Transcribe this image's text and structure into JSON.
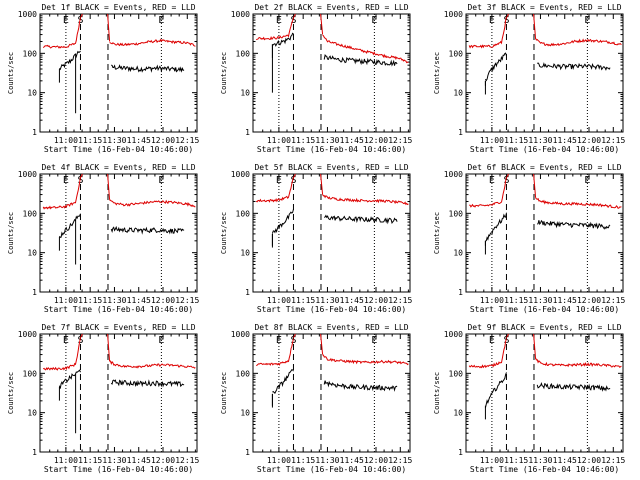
{
  "colors": {
    "events": "#000000",
    "lld": "#dd0000",
    "axes": "#000000",
    "background": "#ffffff"
  },
  "shared": {
    "ylabel": "Counts/sec",
    "xlabel": "Start Time (16-Feb-04 10:46:00)",
    "x_range_minutes": [
      -2,
      95
    ],
    "y_range": [
      1,
      1000
    ],
    "y_scale": "log",
    "y_tick_labels": [
      "1",
      "10",
      "100",
      "1000"
    ],
    "x_tick_labels": [
      "11:00",
      "11:15",
      "11:30",
      "11:45",
      "12:00",
      "12:15"
    ],
    "x_tick_minutes": [
      14,
      29,
      44,
      59,
      74,
      89
    ],
    "marker_labels": [
      "E",
      "S",
      "E"
    ]
  },
  "chart_data": [
    {
      "type": "line",
      "title": "Det 1f BLACK = Events, RED = LLD",
      "markers_min": [
        14,
        23,
        40,
        73
      ],
      "series": [
        {
          "name": "Events",
          "pre": [
            [
              10,
              40
            ],
            [
              13,
              50
            ],
            [
              16,
              60
            ],
            [
              19,
              80
            ],
            [
              22,
              110
            ],
            [
              23,
              120
            ]
          ],
          "post": [
            [
              42,
              45
            ],
            [
              50,
              42
            ],
            [
              60,
              40
            ],
            [
              70,
              42
            ],
            [
              75,
              41
            ],
            [
              87,
              38
            ]
          ],
          "spike": [
            20,
            3
          ]
        },
        {
          "name": "LLD",
          "pre": [
            [
              0,
              150
            ],
            [
              8,
              145
            ],
            [
              14,
              145
            ],
            [
              20,
              180
            ],
            [
              23,
              800
            ]
          ],
          "post": [
            [
              41,
              200
            ],
            [
              44,
              170
            ],
            [
              50,
              165
            ],
            [
              58,
              175
            ],
            [
              65,
              195
            ],
            [
              72,
              210
            ],
            [
              80,
              195
            ],
            [
              88,
              185
            ],
            [
              94,
              160
            ]
          ]
        }
      ]
    },
    {
      "type": "line",
      "title": "Det 2f BLACK = Events, RED = LLD",
      "markers_min": [
        14,
        23,
        40,
        73
      ],
      "series": [
        {
          "name": "Events",
          "pre": [
            [
              10,
              170
            ],
            [
              14,
              185
            ],
            [
              18,
              210
            ],
            [
              21,
              250
            ],
            [
              23,
              320
            ]
          ],
          "post": [
            [
              42,
              80
            ],
            [
              50,
              70
            ],
            [
              60,
              65
            ],
            [
              70,
              62
            ],
            [
              80,
              58
            ],
            [
              87,
              55
            ]
          ],
          "spike": [
            10,
            10
          ]
        },
        {
          "name": "LLD",
          "pre": [
            [
              0,
              240
            ],
            [
              8,
              240
            ],
            [
              14,
              250
            ],
            [
              20,
              290
            ],
            [
              23,
              800
            ]
          ],
          "post": [
            [
              41,
              300
            ],
            [
              44,
              200
            ],
            [
              50,
              170
            ],
            [
              58,
              140
            ],
            [
              66,
              115
            ],
            [
              73,
              100
            ],
            [
              80,
              85
            ],
            [
              88,
              75
            ],
            [
              94,
              60
            ]
          ]
        }
      ]
    },
    {
      "type": "line",
      "title": "Det 3f BLACK = Events, RED = LLD",
      "markers_min": [
        14,
        23,
        40,
        73
      ],
      "series": [
        {
          "name": "Events",
          "pre": [
            [
              10,
              20
            ],
            [
              13,
              35
            ],
            [
              16,
              50
            ],
            [
              19,
              65
            ],
            [
              22,
              90
            ],
            [
              23,
              100
            ]
          ],
          "post": [
            [
              42,
              50
            ],
            [
              50,
              48
            ],
            [
              60,
              46
            ],
            [
              70,
              47
            ],
            [
              80,
              45
            ],
            [
              87,
              43
            ]
          ],
          "spike": [
            10,
            15
          ]
        },
        {
          "name": "LLD",
          "pre": [
            [
              0,
              150
            ],
            [
              8,
              150
            ],
            [
              14,
              150
            ],
            [
              20,
              190
            ],
            [
              23,
              800
            ]
          ],
          "post": [
            [
              41,
              230
            ],
            [
              44,
              180
            ],
            [
              50,
              165
            ],
            [
              58,
              175
            ],
            [
              65,
              200
            ],
            [
              72,
              215
            ],
            [
              80,
              205
            ],
            [
              88,
              190
            ],
            [
              94,
              165
            ]
          ]
        }
      ]
    },
    {
      "type": "line",
      "title": "Det 4f BLACK = Events, RED = LLD",
      "markers_min": [
        14,
        23,
        40,
        73
      ],
      "series": [
        {
          "name": "Events",
          "pre": [
            [
              10,
              25
            ],
            [
              13,
              35
            ],
            [
              16,
              45
            ],
            [
              19,
              60
            ],
            [
              22,
              90
            ],
            [
              23,
              100
            ]
          ],
          "post": [
            [
              42,
              40
            ],
            [
              50,
              38
            ],
            [
              60,
              37
            ],
            [
              70,
              38
            ],
            [
              75,
              37
            ],
            [
              87,
              35
            ]
          ],
          "spike": [
            20,
            5
          ]
        },
        {
          "name": "LLD",
          "pre": [
            [
              0,
              140
            ],
            [
              8,
              140
            ],
            [
              14,
              150
            ],
            [
              20,
              190
            ],
            [
              23,
              800
            ]
          ],
          "post": [
            [
              41,
              220
            ],
            [
              44,
              180
            ],
            [
              50,
              165
            ],
            [
              58,
              175
            ],
            [
              65,
              190
            ],
            [
              72,
              200
            ],
            [
              80,
              190
            ],
            [
              88,
              175
            ],
            [
              94,
              155
            ]
          ]
        }
      ]
    },
    {
      "type": "line",
      "title": "Det 5f BLACK = Events, RED = LLD",
      "markers_min": [
        14,
        23,
        40,
        73
      ],
      "series": [
        {
          "name": "Events",
          "pre": [
            [
              10,
              30
            ],
            [
              14,
              45
            ],
            [
              18,
              65
            ],
            [
              21,
              90
            ],
            [
              23,
              120
            ]
          ],
          "post": [
            [
              42,
              80
            ],
            [
              50,
              75
            ],
            [
              60,
              72
            ],
            [
              70,
              70
            ],
            [
              80,
              68
            ],
            [
              87,
              65
            ]
          ],
          "spike": [
            10,
            15
          ]
        },
        {
          "name": "LLD",
          "pre": [
            [
              0,
              210
            ],
            [
              8,
              210
            ],
            [
              14,
              220
            ],
            [
              20,
              260
            ],
            [
              23,
              800
            ]
          ],
          "post": [
            [
              41,
              300
            ],
            [
              44,
              250
            ],
            [
              50,
              230
            ],
            [
              58,
              220
            ],
            [
              66,
              210
            ],
            [
              73,
              210
            ],
            [
              80,
              205
            ],
            [
              88,
              190
            ],
            [
              94,
              175
            ]
          ]
        }
      ]
    },
    {
      "type": "line",
      "title": "Det 6f BLACK = Events, RED = LLD",
      "markers_min": [
        14,
        23,
        40,
        73
      ],
      "series": [
        {
          "name": "Events",
          "pre": [
            [
              10,
              20
            ],
            [
              13,
              30
            ],
            [
              16,
              45
            ],
            [
              19,
              60
            ],
            [
              22,
              85
            ],
            [
              23,
              95
            ]
          ],
          "post": [
            [
              42,
              60
            ],
            [
              50,
              55
            ],
            [
              60,
              52
            ],
            [
              70,
              50
            ],
            [
              80,
              48
            ],
            [
              87,
              46
            ]
          ],
          "spike": [
            10,
            15
          ]
        },
        {
          "name": "LLD",
          "pre": [
            [
              0,
              155
            ],
            [
              8,
              155
            ],
            [
              14,
              165
            ],
            [
              20,
              200
            ],
            [
              23,
              800
            ]
          ],
          "post": [
            [
              41,
              250
            ],
            [
              44,
              200
            ],
            [
              50,
              185
            ],
            [
              58,
              175
            ],
            [
              66,
              175
            ],
            [
              73,
              170
            ],
            [
              80,
              165
            ],
            [
              88,
              150
            ],
            [
              94,
              140
            ]
          ]
        }
      ]
    },
    {
      "type": "line",
      "title": "Det 7f BLACK = Events, RED = LLD",
      "markers_min": [
        14,
        23,
        40,
        73
      ],
      "series": [
        {
          "name": "Events",
          "pre": [
            [
              10,
              45
            ],
            [
              13,
              60
            ],
            [
              16,
              75
            ],
            [
              19,
              90
            ],
            [
              22,
              110
            ],
            [
              23,
              120
            ]
          ],
          "post": [
            [
              42,
              60
            ],
            [
              50,
              58
            ],
            [
              60,
              55
            ],
            [
              70,
              57
            ],
            [
              75,
              55
            ],
            [
              87,
              53
            ]
          ],
          "spike": [
            20,
            3
          ]
        },
        {
          "name": "LLD",
          "pre": [
            [
              0,
              130
            ],
            [
              8,
              130
            ],
            [
              14,
              135
            ],
            [
              20,
              170
            ],
            [
              23,
              800
            ]
          ],
          "post": [
            [
              41,
              200
            ],
            [
              44,
              170
            ],
            [
              50,
              150
            ],
            [
              58,
              150
            ],
            [
              65,
              155
            ],
            [
              72,
              165
            ],
            [
              80,
              160
            ],
            [
              88,
              150
            ],
            [
              94,
              140
            ]
          ]
        }
      ]
    },
    {
      "type": "line",
      "title": "Det 8f BLACK = Events, RED = LLD",
      "markers_min": [
        14,
        23,
        40,
        73
      ],
      "series": [
        {
          "name": "Events",
          "pre": [
            [
              10,
              30
            ],
            [
              14,
              45
            ],
            [
              18,
              70
            ],
            [
              21,
              100
            ],
            [
              23,
              130
            ]
          ],
          "post": [
            [
              42,
              60
            ],
            [
              50,
              50
            ],
            [
              60,
              45
            ],
            [
              70,
              44
            ],
            [
              80,
              43
            ],
            [
              87,
              42
            ]
          ],
          "spike": [
            10,
            15
          ]
        },
        {
          "name": "LLD",
          "pre": [
            [
              0,
              170
            ],
            [
              8,
              170
            ],
            [
              14,
              175
            ],
            [
              20,
              210
            ],
            [
              23,
              800
            ]
          ],
          "post": [
            [
              41,
              300
            ],
            [
              44,
              230
            ],
            [
              50,
              210
            ],
            [
              58,
              200
            ],
            [
              66,
              190
            ],
            [
              73,
              195
            ],
            [
              80,
              200
            ],
            [
              88,
              190
            ],
            [
              94,
              170
            ]
          ]
        }
      ]
    },
    {
      "type": "line",
      "title": "Det 9f BLACK = Events, RED = LLD",
      "markers_min": [
        14,
        23,
        40,
        73
      ],
      "series": [
        {
          "name": "Events",
          "pre": [
            [
              10,
              15
            ],
            [
              13,
              25
            ],
            [
              16,
              40
            ],
            [
              19,
              55
            ],
            [
              22,
              80
            ],
            [
              23,
              95
            ]
          ],
          "post": [
            [
              42,
              50
            ],
            [
              50,
              47
            ],
            [
              60,
              45
            ],
            [
              70,
              45
            ],
            [
              80,
              43
            ],
            [
              87,
              40
            ]
          ],
          "spike": [
            10,
            15
          ]
        },
        {
          "name": "LLD",
          "pre": [
            [
              0,
              150
            ],
            [
              8,
              150
            ],
            [
              14,
              155
            ],
            [
              20,
              200
            ],
            [
              23,
              800
            ]
          ],
          "post": [
            [
              41,
              230
            ],
            [
              44,
              180
            ],
            [
              50,
              165
            ],
            [
              58,
              160
            ],
            [
              66,
              165
            ],
            [
              73,
              170
            ],
            [
              80,
              165
            ],
            [
              88,
              155
            ],
            [
              94,
              145
            ]
          ]
        }
      ]
    }
  ]
}
